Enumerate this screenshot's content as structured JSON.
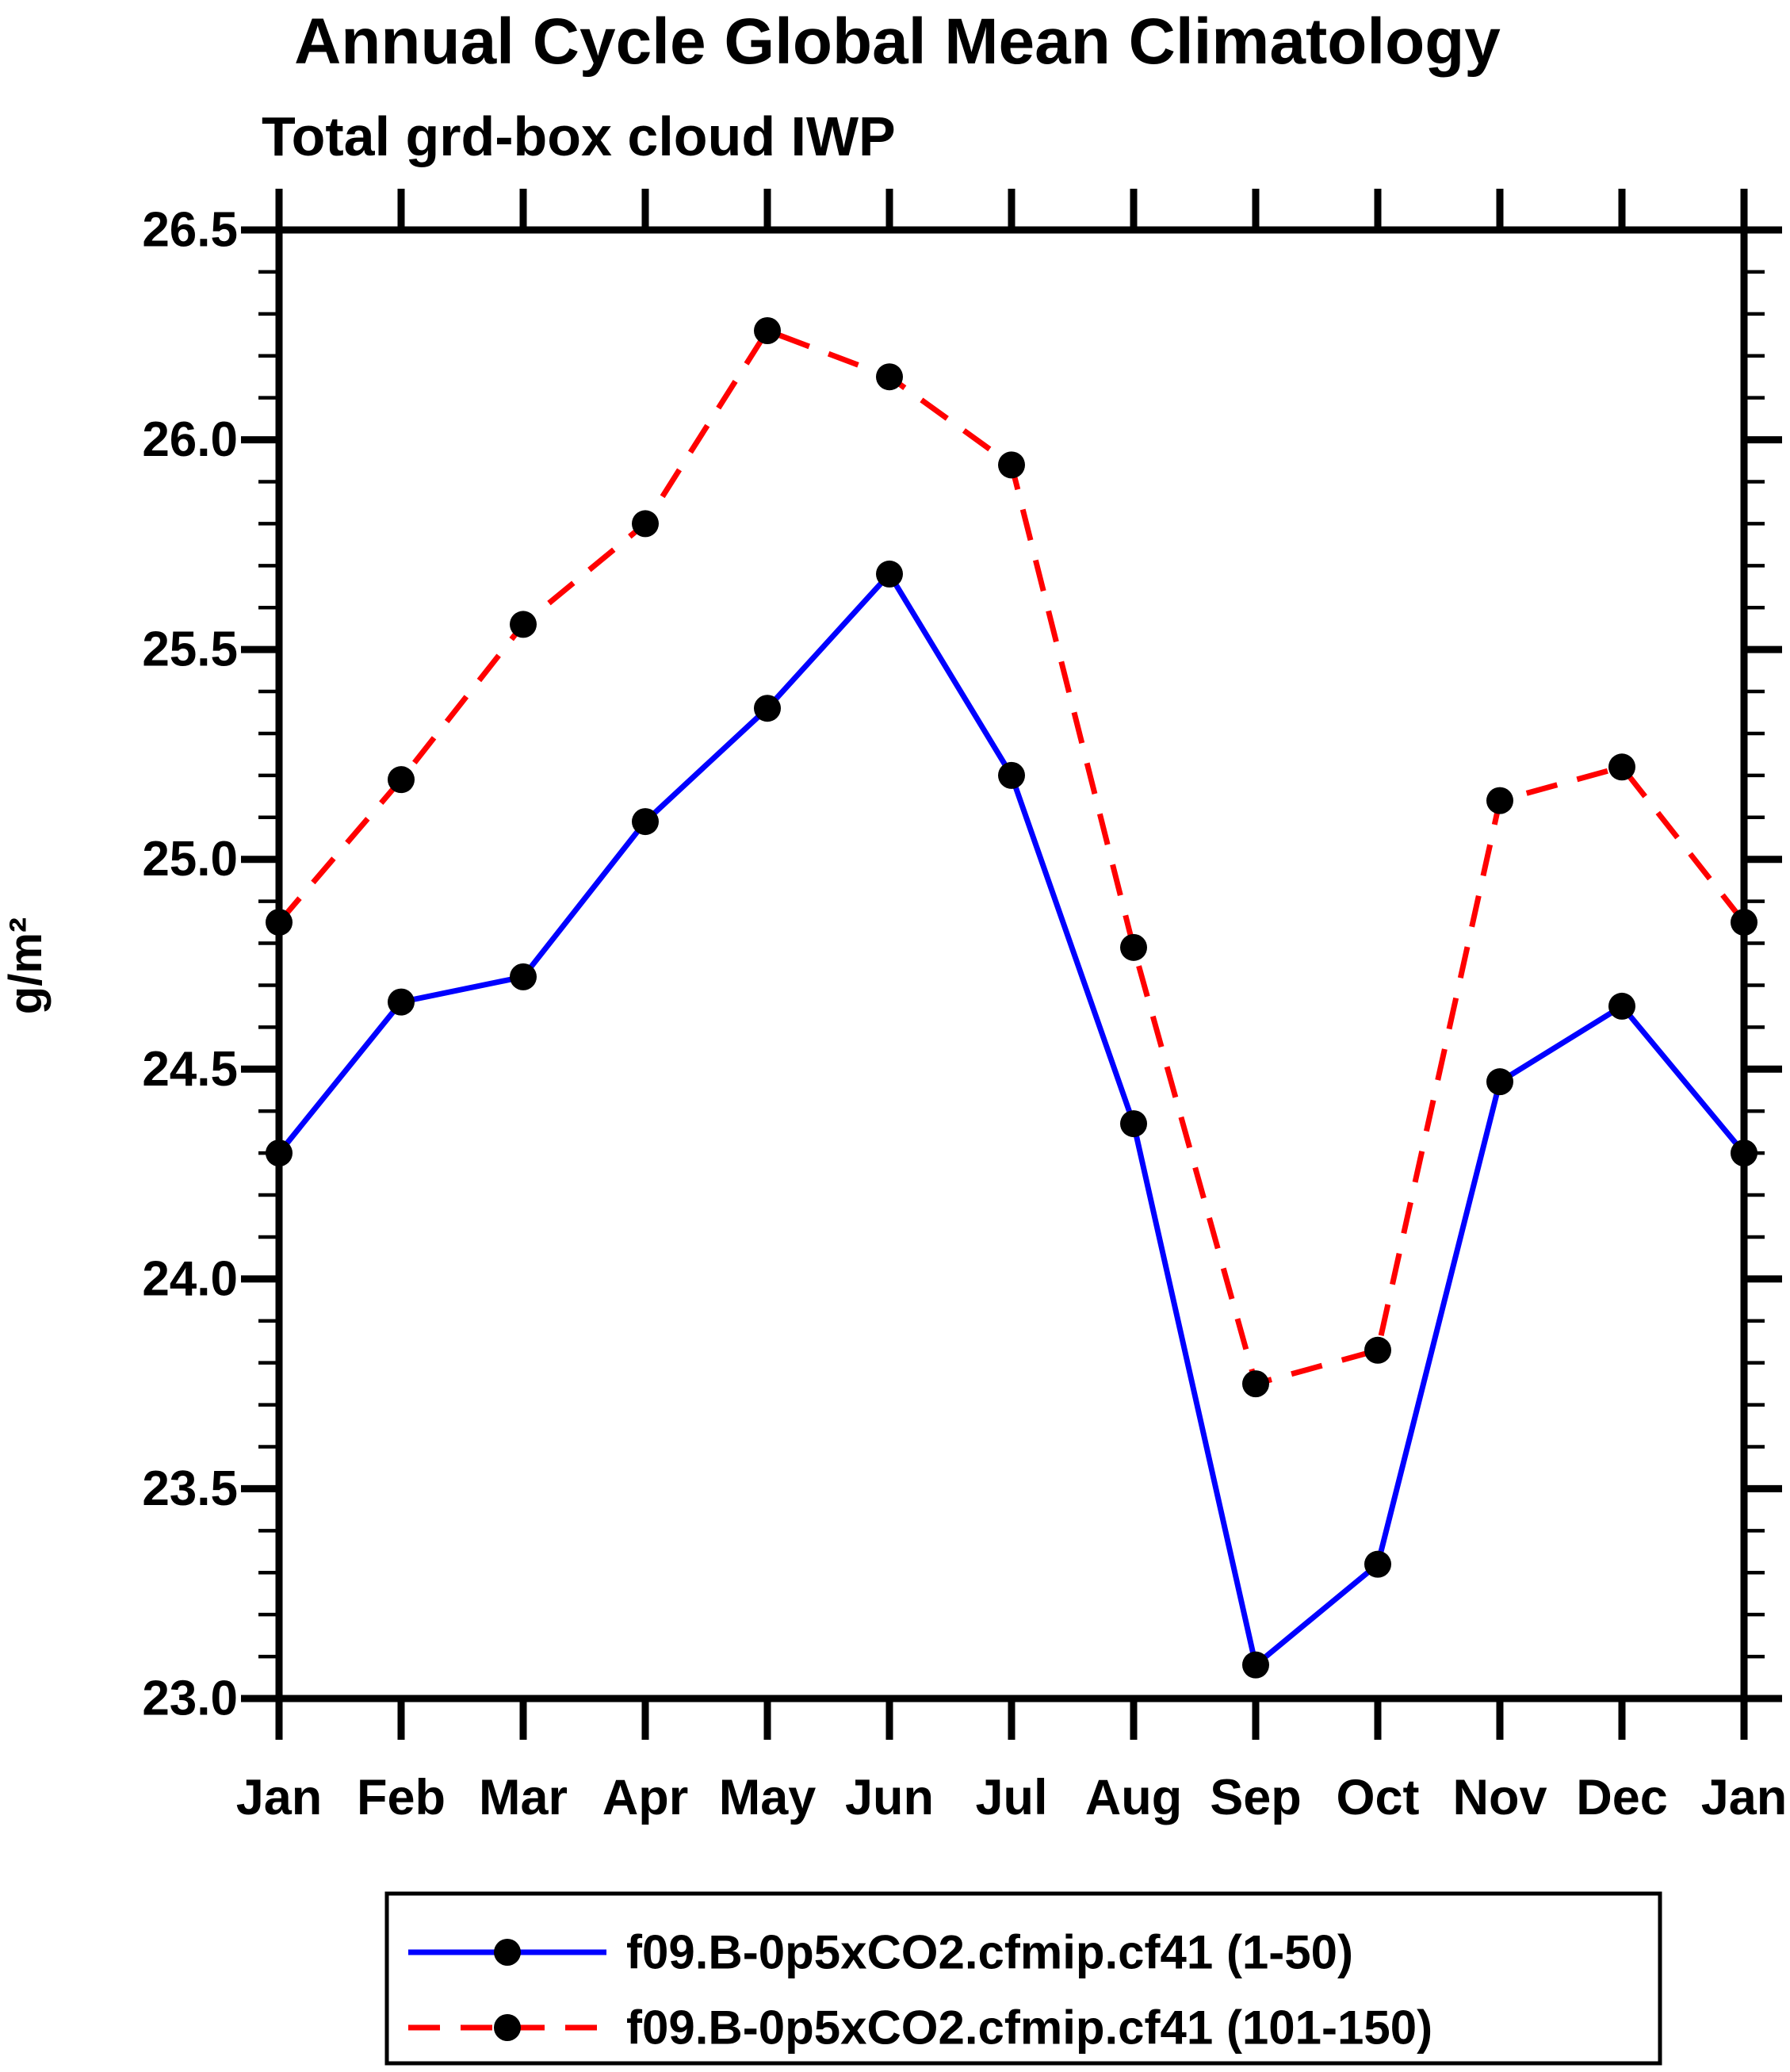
{
  "title": "Annual Cycle Global Mean Climatology",
  "subtitle": "Total grd-box cloud IWP",
  "chart_data": {
    "type": "line",
    "title": "Annual Cycle Global Mean Climatology",
    "subtitle": "Total grd-box cloud IWP",
    "xlabel": "",
    "ylabel": "g/m²",
    "categories": [
      "Jan",
      "Feb",
      "Mar",
      "Apr",
      "May",
      "Jun",
      "Jul",
      "Aug",
      "Sep",
      "Oct",
      "Nov",
      "Dec",
      "Jan"
    ],
    "ylim": [
      23.0,
      26.5
    ],
    "ytick_major_step": 0.5,
    "ytick_minor_step": 0.1,
    "ytick_labels": [
      "23.0",
      "23.5",
      "24.0",
      "24.5",
      "25.0",
      "25.5",
      "26.0",
      "26.5"
    ],
    "grid": false,
    "legend_position": "bottom",
    "axis_color": "#000000",
    "marker_color": "#000000",
    "series": [
      {
        "name": "f09.B-0p5xCO2.cfmip.cf41 (1-50)",
        "color": "#0000ff",
        "line_style": "solid",
        "marker": "circle",
        "values": [
          24.3,
          24.66,
          24.72,
          25.09,
          25.36,
          25.68,
          25.2,
          24.37,
          23.08,
          23.32,
          24.47,
          24.65,
          24.3
        ]
      },
      {
        "name": "f09.B-0p5xCO2.cfmip.cf41 (101-150)",
        "color": "#ff0000",
        "line_style": "dashed",
        "marker": "circle",
        "values": [
          24.85,
          25.19,
          25.56,
          25.8,
          26.26,
          26.15,
          25.94,
          24.79,
          23.75,
          23.83,
          25.14,
          25.22,
          24.85
        ]
      }
    ]
  }
}
